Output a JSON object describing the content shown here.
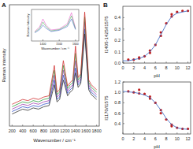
{
  "chart_data": [
    {
      "type": "line",
      "title": "A",
      "x_label": "Wavenumber / cm⁻¹",
      "y_label": "Raman intensity",
      "xlim": [
        150,
        1850
      ],
      "xticks": [
        200,
        400,
        600,
        800,
        1000,
        1200,
        1400,
        1600,
        1800
      ],
      "ylim": [
        0,
        100
      ],
      "tick_labels": "x",
      "series": [
        {
          "color": "#3050c8",
          "x": [
            200,
            300,
            400,
            500,
            600,
            700,
            800,
            900,
            1000,
            1050,
            1100,
            1170,
            1250,
            1300,
            1350,
            1400,
            1450,
            1500,
            1575,
            1650,
            1700,
            1800
          ],
          "values": [
            12,
            14,
            16,
            15,
            17,
            16,
            18,
            19,
            38,
            22,
            24,
            42,
            27,
            30,
            32,
            48,
            34,
            37,
            80,
            32,
            28,
            24
          ]
        },
        {
          "color": "#a040b0",
          "x": [
            200,
            300,
            400,
            500,
            600,
            700,
            800,
            900,
            1000,
            1050,
            1100,
            1170,
            1250,
            1300,
            1350,
            1400,
            1450,
            1500,
            1575,
            1650,
            1700,
            1800
          ],
          "values": [
            14,
            16,
            18,
            17,
            19,
            18,
            20,
            21,
            42,
            24,
            26,
            46,
            29,
            32,
            34,
            54,
            36,
            39,
            86,
            34,
            30,
            26
          ]
        },
        {
          "color": "#30a040",
          "x": [
            200,
            300,
            400,
            500,
            600,
            700,
            800,
            900,
            1000,
            1050,
            1100,
            1170,
            1250,
            1300,
            1350,
            1400,
            1450,
            1500,
            1575,
            1650,
            1700,
            1800
          ],
          "values": [
            16,
            18,
            20,
            19,
            21,
            20,
            22,
            23,
            46,
            26,
            28,
            50,
            31,
            34,
            36,
            60,
            38,
            41,
            90,
            36,
            32,
            28
          ]
        },
        {
          "color": "#d03030",
          "x": [
            200,
            300,
            400,
            500,
            600,
            700,
            800,
            900,
            1000,
            1050,
            1100,
            1170,
            1250,
            1300,
            1350,
            1400,
            1450,
            1500,
            1575,
            1650,
            1700,
            1800
          ],
          "values": [
            18,
            20,
            22,
            21,
            23,
            22,
            24,
            25,
            50,
            28,
            30,
            54,
            33,
            36,
            38,
            66,
            40,
            43,
            94,
            38,
            34,
            30
          ]
        },
        {
          "color": "#303030",
          "x": [
            200,
            300,
            400,
            500,
            600,
            700,
            800,
            900,
            1000,
            1050,
            1100,
            1170,
            1250,
            1300,
            1350,
            1400,
            1450,
            1500,
            1575,
            1650,
            1700,
            1800
          ],
          "values": [
            10,
            12,
            14,
            13,
            15,
            14,
            16,
            17,
            34,
            20,
            22,
            38,
            25,
            28,
            30,
            44,
            32,
            35,
            76,
            30,
            26,
            22
          ]
        }
      ]
    },
    {
      "type": "line",
      "x_label": "Wavenumber / cm⁻¹",
      "y_label": "Raman Intensity",
      "xlim": [
        1330,
        1620
      ],
      "xticks": [
        1400,
        1500,
        1600
      ],
      "ylim": [
        0,
        100
      ],
      "tick_labels": "x",
      "series": [
        {
          "color": "#e040c0",
          "x": [
            1350,
            1380,
            1400,
            1420,
            1450,
            1500,
            1550,
            1575,
            1600
          ],
          "values": [
            30,
            45,
            70,
            50,
            35,
            38,
            55,
            90,
            40
          ]
        },
        {
          "color": "#30a040",
          "x": [
            1350,
            1380,
            1400,
            1420,
            1450,
            1500,
            1550,
            1575,
            1600
          ],
          "values": [
            28,
            40,
            60,
            45,
            32,
            36,
            50,
            80,
            38
          ]
        },
        {
          "color": "#3050c8",
          "x": [
            1350,
            1380,
            1400,
            1420,
            1450,
            1500,
            1550,
            1575,
            1600
          ],
          "values": [
            26,
            36,
            50,
            40,
            30,
            34,
            46,
            70,
            36
          ]
        }
      ]
    },
    {
      "type": "scatter",
      "title": "B",
      "x_label": "pH",
      "y_label": "I1405-1425/I1575",
      "xlim": [
        0,
        12.5
      ],
      "xticks": [
        0,
        2,
        4,
        6,
        8,
        10,
        12
      ],
      "ylim": [
        0,
        0.5
      ],
      "yticks": [
        {
          "value": 0,
          "label": "0.0"
        },
        0.1,
        0.2,
        0.3,
        0.4
      ],
      "series": [
        {
          "type": "scatter",
          "marker": "circle",
          "color": "#c02020",
          "x": [
            1,
            2,
            3,
            3,
            4,
            5,
            5,
            6,
            7,
            7,
            8,
            9,
            9,
            10,
            11,
            12
          ],
          "values": [
            0.03,
            0.03,
            0.04,
            0.05,
            0.06,
            0.09,
            0.11,
            0.16,
            0.24,
            0.27,
            0.35,
            0.41,
            0.43,
            0.45,
            0.46,
            0.46
          ]
        },
        {
          "type": "line",
          "color": "#3060c0",
          "x": [
            0,
            1,
            2,
            3,
            4,
            5,
            6,
            7,
            8,
            9,
            10,
            11,
            12
          ],
          "values": [
            0.02,
            0.02,
            0.03,
            0.04,
            0.06,
            0.1,
            0.16,
            0.25,
            0.34,
            0.41,
            0.44,
            0.45,
            0.46
          ]
        }
      ]
    },
    {
      "type": "scatter",
      "x_label": "pH",
      "y_label": "I1170/I1575",
      "xlim": [
        0,
        12.5
      ],
      "xticks": [
        0,
        2,
        4,
        6,
        8,
        10,
        12
      ],
      "ylim": [
        0.2,
        1.2
      ],
      "yticks": [
        0.4,
        0.6,
        0.8,
        {
          "value": 1,
          "label": "1.0"
        },
        1.2
      ],
      "series": [
        {
          "type": "scatter",
          "marker": "circle",
          "color": "#c02020",
          "x": [
            1,
            2,
            3,
            3,
            4,
            5,
            5,
            6,
            7,
            7,
            8,
            9,
            9,
            10,
            11,
            12
          ],
          "values": [
            1.02,
            1.0,
            0.98,
            1.05,
            0.97,
            0.92,
            0.88,
            0.8,
            0.66,
            0.6,
            0.48,
            0.38,
            0.35,
            0.32,
            0.3,
            0.3
          ]
        },
        {
          "type": "line",
          "color": "#3060c0",
          "x": [
            0,
            1,
            2,
            3,
            4,
            5,
            6,
            7,
            8,
            9,
            10,
            11,
            12
          ],
          "values": [
            1.02,
            1.01,
            1.0,
            0.98,
            0.95,
            0.9,
            0.8,
            0.66,
            0.5,
            0.38,
            0.32,
            0.3,
            0.29
          ]
        }
      ]
    }
  ]
}
